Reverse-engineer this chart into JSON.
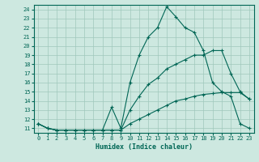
{
  "xlabel": "Humidex (Indice chaleur)",
  "ylabel": "",
  "background_color": "#cde8e0",
  "grid_color": "#a0c8bc",
  "line_color": "#006655",
  "xlim": [
    -0.5,
    23.5
  ],
  "ylim": [
    10.5,
    24.5
  ],
  "yticks": [
    11,
    12,
    13,
    14,
    15,
    16,
    17,
    18,
    19,
    20,
    21,
    22,
    23,
    24
  ],
  "xticks": [
    0,
    1,
    2,
    3,
    4,
    5,
    6,
    7,
    8,
    9,
    10,
    11,
    12,
    13,
    14,
    15,
    16,
    17,
    18,
    19,
    20,
    21,
    22,
    23
  ],
  "series": [
    {
      "x": [
        0,
        1,
        2,
        3,
        4,
        5,
        6,
        7,
        8,
        9,
        10,
        11,
        12,
        13,
        14,
        15,
        16,
        17,
        18,
        19,
        20,
        21,
        22,
        23
      ],
      "y": [
        11.5,
        11.0,
        10.8,
        10.8,
        10.8,
        10.8,
        10.8,
        10.8,
        10.8,
        10.8,
        11.5,
        12.0,
        12.5,
        13.0,
        13.5,
        14.0,
        14.2,
        14.5,
        14.7,
        14.8,
        14.9,
        14.9,
        14.9,
        14.2
      ]
    },
    {
      "x": [
        0,
        1,
        2,
        3,
        4,
        5,
        6,
        7,
        8,
        9,
        10,
        11,
        12,
        13,
        14,
        15,
        16,
        17,
        18,
        19,
        20,
        21,
        22,
        23
      ],
      "y": [
        11.5,
        11.0,
        10.8,
        10.8,
        10.8,
        10.8,
        10.8,
        10.8,
        10.8,
        10.8,
        13.0,
        14.5,
        15.8,
        16.5,
        17.5,
        18.0,
        18.5,
        19.0,
        19.0,
        19.5,
        19.5,
        17.0,
        15.0,
        14.2
      ]
    },
    {
      "x": [
        0,
        1,
        2,
        3,
        4,
        5,
        6,
        7,
        8,
        9,
        10,
        11,
        12,
        13,
        14,
        15,
        16,
        17,
        18,
        19,
        20,
        21,
        22,
        23
      ],
      "y": [
        11.5,
        11.0,
        10.8,
        10.8,
        10.8,
        10.8,
        10.8,
        10.8,
        13.3,
        11.0,
        16.0,
        19.0,
        21.0,
        22.0,
        24.3,
        23.2,
        22.0,
        21.5,
        19.5,
        16.0,
        15.0,
        14.5,
        11.5,
        11.0
      ]
    }
  ]
}
